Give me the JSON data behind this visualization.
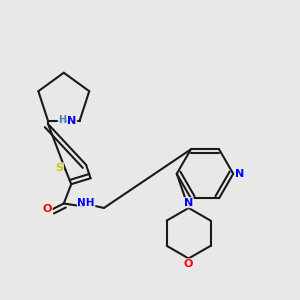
{
  "background_color": "#e8e8e8",
  "bond_color": "#1a1a1a",
  "atom_colors": {
    "N": "#0000ff",
    "O": "#ff0000",
    "S": "#cccc00",
    "H": "#4488aa",
    "C": "#1a1a1a"
  },
  "title": ""
}
